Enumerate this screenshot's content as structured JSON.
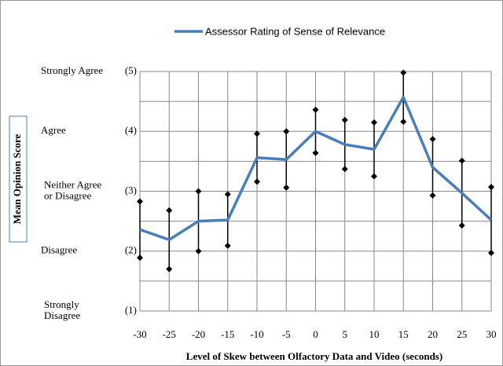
{
  "chart_data": {
    "type": "line",
    "x_label": "Level of Skew between Olfactory Data and Video (seconds)",
    "y_label": "Mean Opinion Score",
    "x": [
      -30,
      -25,
      -20,
      -15,
      -10,
      -5,
      0,
      5,
      10,
      15,
      20,
      25,
      30
    ],
    "series": [
      {
        "name": "Assessor Rating of Sense of Relevance",
        "color": "#4a7ebb",
        "values": [
          2.36,
          2.19,
          2.5,
          2.52,
          3.56,
          3.53,
          4.0,
          3.78,
          3.7,
          4.57,
          3.4,
          2.97,
          2.52
        ],
        "errors": [
          0.47,
          0.49,
          0.5,
          0.43,
          0.4,
          0.47,
          0.36,
          0.41,
          0.45,
          0.41,
          0.47,
          0.54,
          0.55
        ]
      }
    ],
    "xlim": [
      -30,
      30
    ],
    "xticks": [
      -30,
      -25,
      -20,
      -15,
      -10,
      -5,
      0,
      5,
      10,
      15,
      20,
      25,
      30
    ],
    "ylim": [
      1,
      5
    ],
    "yticks": [
      {
        "value": 1,
        "label": "(1)",
        "name": [
          "Strongly",
          "Disagree"
        ]
      },
      {
        "value": 1.5,
        "label": null
      },
      {
        "value": 2,
        "label": "(2)",
        "name": [
          "Disagree"
        ]
      },
      {
        "value": 2.5,
        "label": null
      },
      {
        "value": 3,
        "label": "(3)",
        "name": [
          "Neither Agree",
          "or Disagree"
        ]
      },
      {
        "value": 3.5,
        "label": null
      },
      {
        "value": 4,
        "label": "(4)",
        "name": [
          "Agree"
        ]
      },
      {
        "value": 4.5,
        "label": null
      },
      {
        "value": 5,
        "label": "(5)",
        "name": [
          "Strongly Agree"
        ]
      }
    ],
    "grid": true,
    "legend": "top"
  }
}
